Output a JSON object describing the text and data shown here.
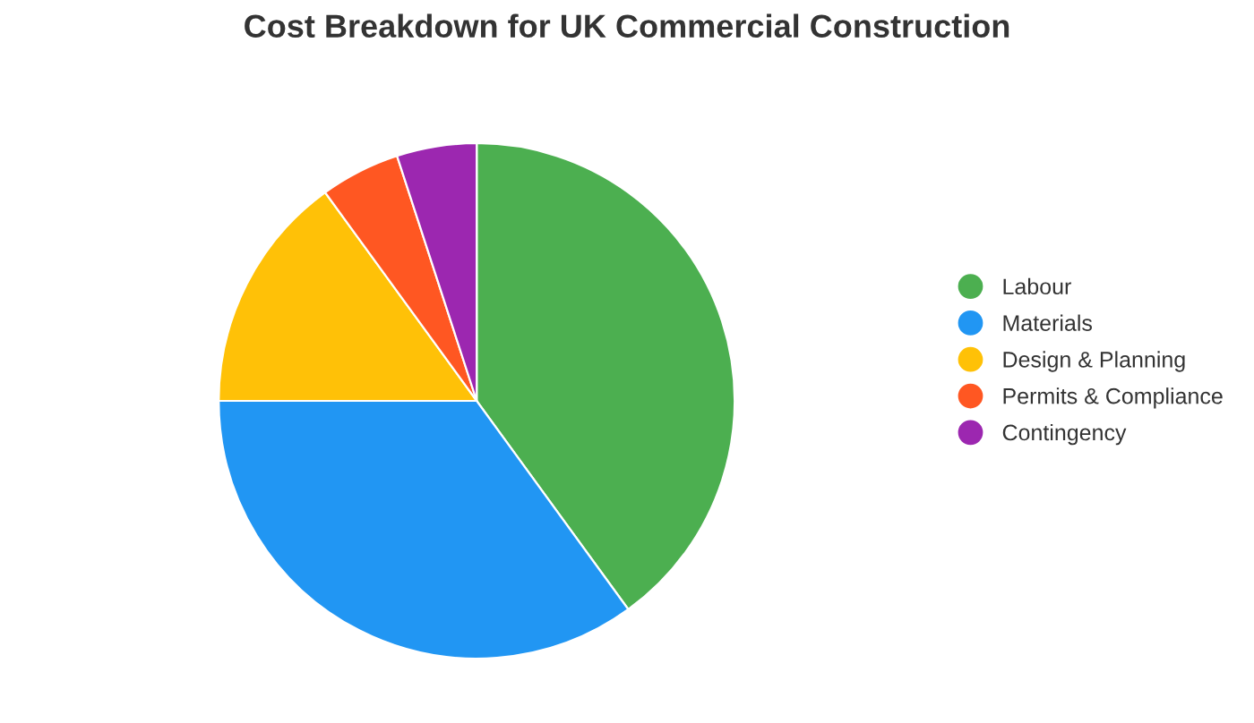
{
  "chart_data": {
    "type": "pie",
    "title": "Cost Breakdown for UK Commercial Construction",
    "categories": [
      "Labour",
      "Materials",
      "Design & Planning",
      "Permits & Compliance",
      "Contingency"
    ],
    "values": [
      40,
      35,
      15,
      5,
      5
    ],
    "colors": [
      "#4caf50",
      "#2196f3",
      "#ffc107",
      "#ff5722",
      "#9c27b0"
    ],
    "legend": "right"
  }
}
